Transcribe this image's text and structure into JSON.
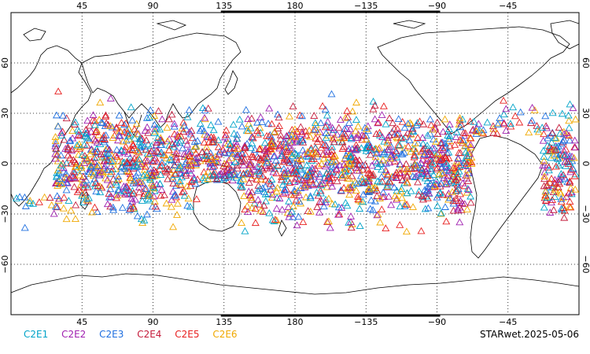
{
  "map": {
    "lon_ticks": [
      {
        "lon": 45,
        "label": "45"
      },
      {
        "lon": 90,
        "label": "90"
      },
      {
        "lon": 135,
        "label": "135"
      },
      {
        "lon": 180,
        "label": "180"
      },
      {
        "lon": 225,
        "label": "−135"
      },
      {
        "lon": 270,
        "label": "−90"
      },
      {
        "lon": 315,
        "label": "−45"
      }
    ],
    "lat_ticks": [
      {
        "lat": 60,
        "label": "60"
      },
      {
        "lat": 30,
        "label": "30"
      },
      {
        "lat": 0,
        "label": "0"
      },
      {
        "lat": -30,
        "label": "−30"
      },
      {
        "lat": -60,
        "label": "−60"
      }
    ],
    "lon_range": [
      0,
      360
    ],
    "lat_range": [
      -90,
      90
    ],
    "grid": "dotted"
  },
  "legend": [
    {
      "label": "C2E1",
      "color": "#00a3c8"
    },
    {
      "label": "C2E2",
      "color": "#a020b0"
    },
    {
      "label": "C2E3",
      "color": "#1e6fe0"
    },
    {
      "label": "C2E4",
      "color": "#c41a3a"
    },
    {
      "label": "C2E5",
      "color": "#e82020"
    },
    {
      "label": "C2E6",
      "color": "#f0a800"
    }
  ],
  "stamp": "STARwet.2025-05-06",
  "marker_symbol": "triangle-open"
}
